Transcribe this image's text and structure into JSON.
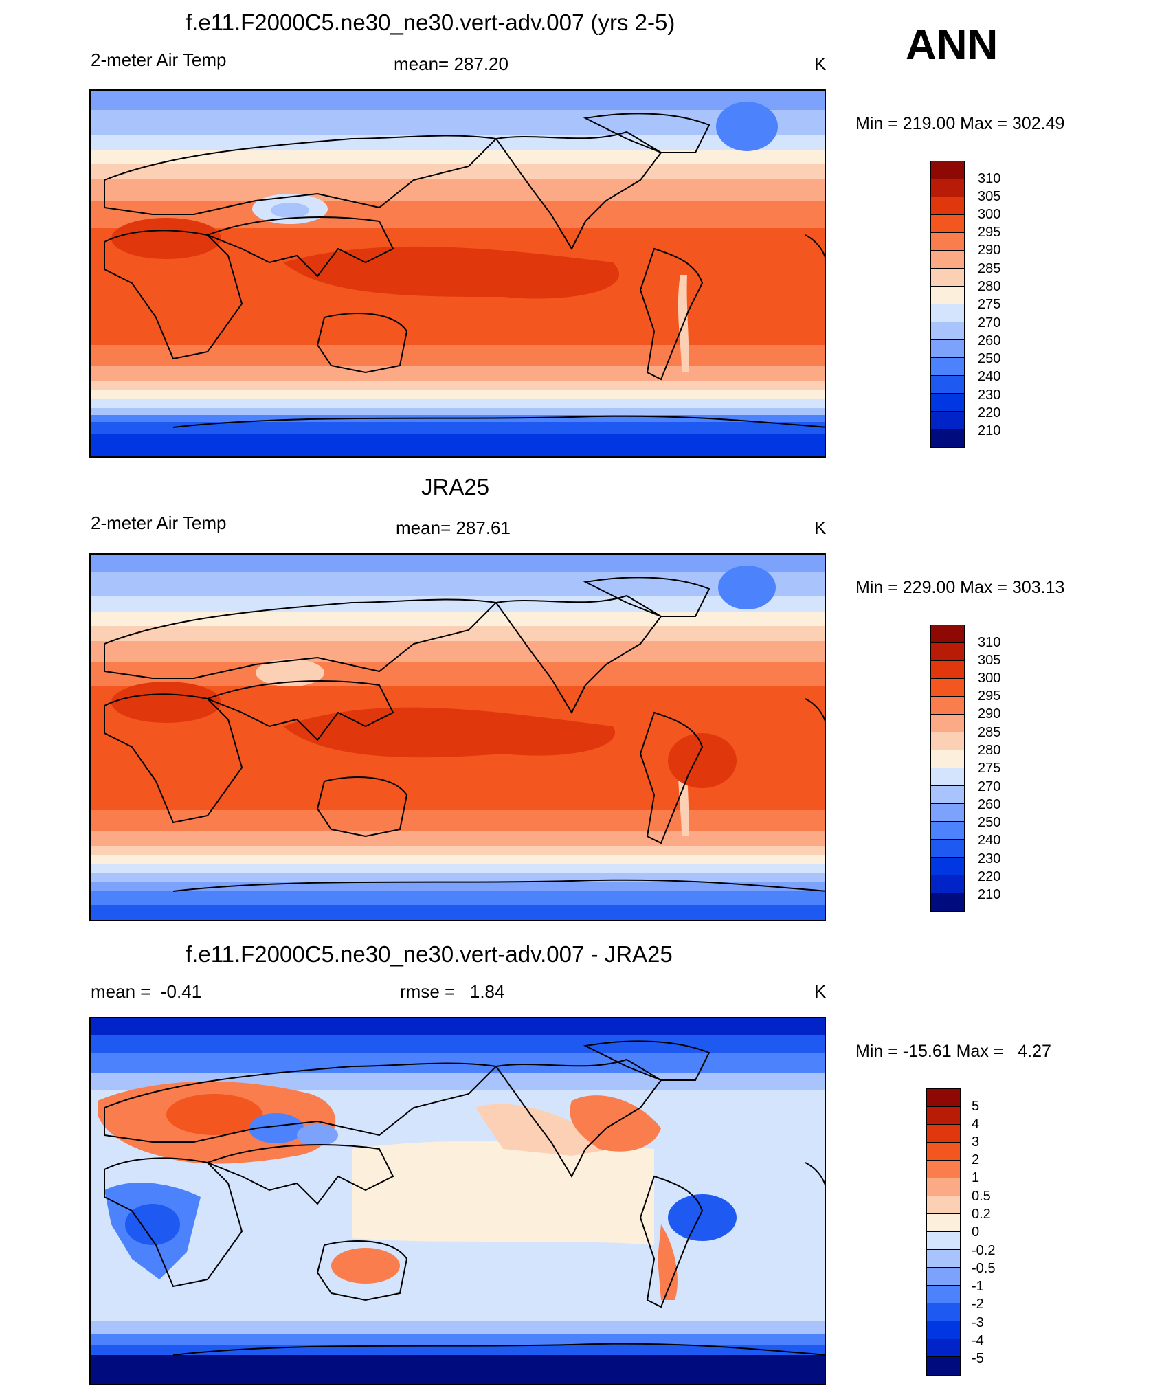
{
  "season": "ANN",
  "palettes": {
    "temp": [
      "#000c7d",
      "#0024c8",
      "#0037e3",
      "#1e5af2",
      "#4c82fb",
      "#7ca2fc",
      "#a9c4fc",
      "#d4e4fc",
      "#fcefdc",
      "#fcd0b4",
      "#fca985",
      "#fa7d4e",
      "#f3561f",
      "#e0380c",
      "#b81c07",
      "#8e0804"
    ],
    "diff": [
      "#000c7d",
      "#0024c8",
      "#0037e3",
      "#1e5af2",
      "#4c82fb",
      "#7ca2fc",
      "#a9c4fc",
      "#d4e4fc",
      "#fcefdc",
      "#fcd0b4",
      "#fca985",
      "#fa7d4e",
      "#f3561f",
      "#e0380c",
      "#b81c07",
      "#8e0804"
    ]
  },
  "panels": [
    {
      "id": "model",
      "title": "f.e11.F2000C5.ne30_ne30.vert-adv.007 (yrs 2-5)",
      "left_label": "2-meter Air Temp",
      "center_label": "mean= 287.20",
      "units": "K",
      "minmax": "Min = 219.00 Max = 302.49",
      "colorbar_labels": [
        "310",
        "305",
        "300",
        "295",
        "290",
        "285",
        "280",
        "275",
        "270",
        "260",
        "250",
        "240",
        "230",
        "220",
        "210"
      ]
    },
    {
      "id": "obs",
      "title": "JRA25",
      "left_label": "2-meter Air Temp",
      "center_label": "mean= 287.61",
      "units": "K",
      "minmax": "Min = 229.00 Max = 303.13",
      "colorbar_labels": [
        "310",
        "305",
        "300",
        "295",
        "290",
        "285",
        "280",
        "275",
        "270",
        "260",
        "250",
        "240",
        "230",
        "220",
        "210"
      ]
    },
    {
      "id": "diff",
      "title": "f.e11.F2000C5.ne30_ne30.vert-adv.007 - JRA25",
      "left_label": "mean =  -0.41",
      "center_label": "rmse =   1.84",
      "units": "K",
      "minmax": "Min = -15.61 Max =   4.27",
      "colorbar_labels": [
        "5",
        "4",
        "3",
        "2",
        "1",
        "0.5",
        "0.2",
        "0",
        "-0.2",
        "-0.5",
        "-1",
        "-2",
        "-3",
        "-4",
        "-5"
      ]
    }
  ]
}
